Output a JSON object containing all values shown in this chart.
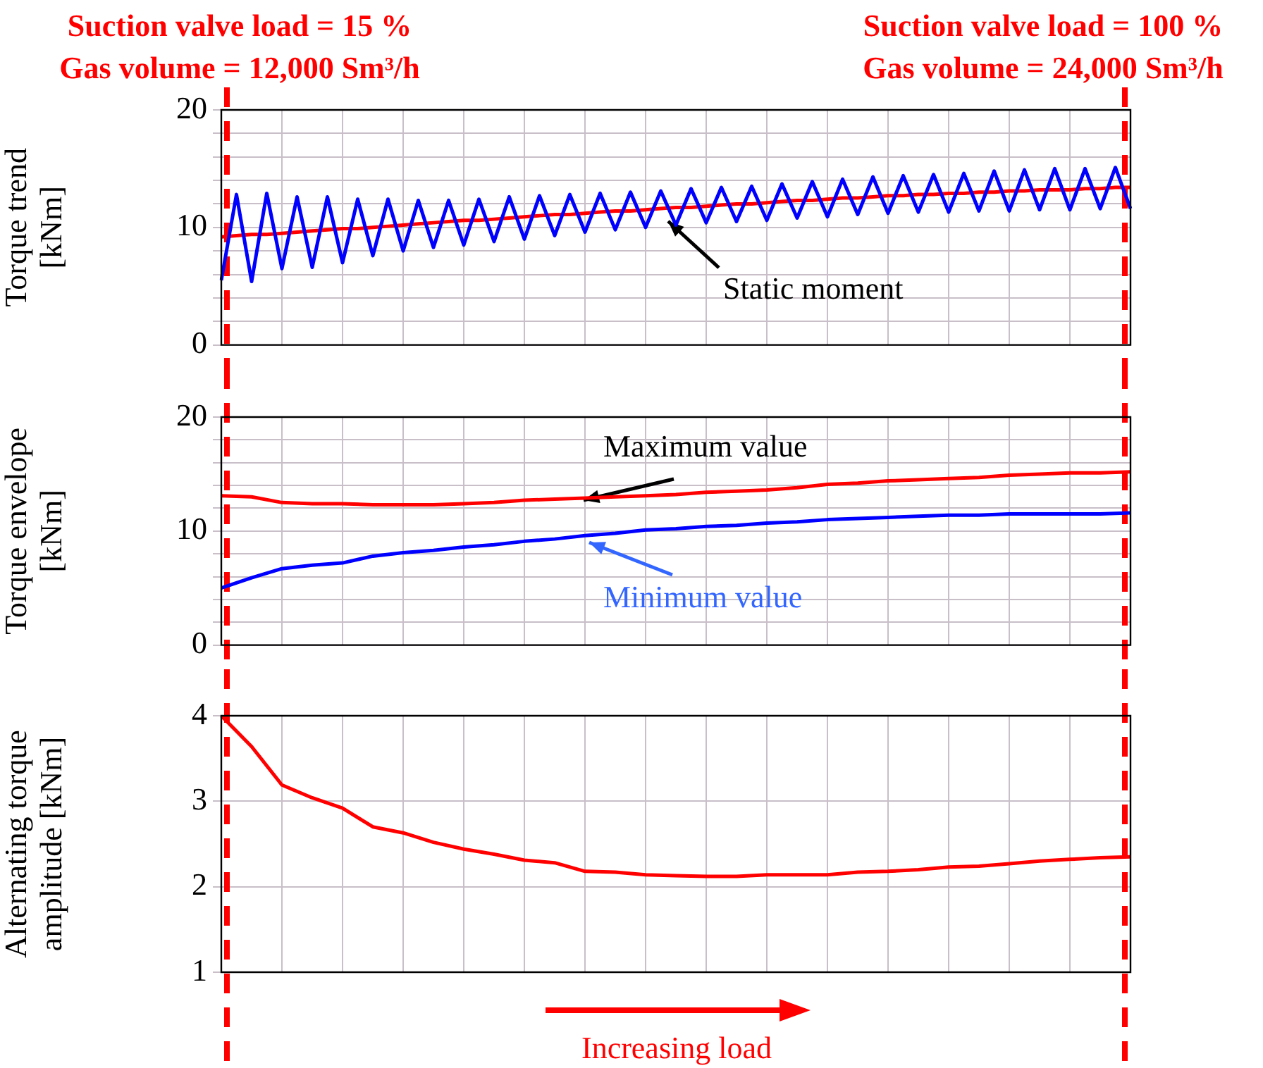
{
  "chart_data": [
    {
      "type": "line",
      "ylabel": "Torque trend\n[kNm]",
      "categories": [
        null,
        null,
        null,
        null,
        null,
        null,
        null,
        null,
        null,
        null,
        null,
        null,
        null,
        null,
        null,
        null,
        null,
        null,
        null,
        null,
        null,
        null,
        null,
        null,
        null,
        null,
        null,
        null,
        null,
        null,
        null,
        null,
        null,
        null,
        null,
        null,
        null,
        null,
        null,
        null,
        null,
        null,
        null,
        null,
        null,
        null,
        null,
        null,
        null,
        null,
        null,
        null,
        null,
        null,
        null,
        null,
        null,
        null,
        null,
        null,
        null
      ],
      "ylim": [
        0,
        20
      ],
      "yticks": [
        0,
        {
          "value": 2,
          "label": null
        },
        {
          "value": 4,
          "label": null
        },
        {
          "value": 6,
          "label": null
        },
        {
          "value": 8,
          "label": null
        },
        10,
        {
          "value": 12,
          "label": null
        },
        {
          "value": 14,
          "label": null
        },
        {
          "value": 16,
          "label": null
        },
        {
          "value": 18,
          "label": null
        },
        20
      ],
      "grid": true,
      "tick_labels": "y",
      "marker": "none",
      "series": [
        {
          "color": "#0000ff",
          "values": [
            5.5,
            12.8,
            5.4,
            12.9,
            6.5,
            12.6,
            6.6,
            12.6,
            7.0,
            12.4,
            7.6,
            12.4,
            8.0,
            12.3,
            8.3,
            12.3,
            8.5,
            12.4,
            8.8,
            12.6,
            9.0,
            12.7,
            9.3,
            12.8,
            9.6,
            12.9,
            9.8,
            13.0,
            10.0,
            13.1,
            10.2,
            13.3,
            10.4,
            13.4,
            10.5,
            13.5,
            10.6,
            13.7,
            10.8,
            13.9,
            10.9,
            14.1,
            11.1,
            14.3,
            11.2,
            14.4,
            11.3,
            14.5,
            11.3,
            14.6,
            11.4,
            14.8,
            11.4,
            14.9,
            11.5,
            15.0,
            11.5,
            15.0,
            11.6,
            15.1,
            11.6
          ]
        },
        {
          "color": "#ff0000",
          "values": [
            9.2,
            9.3,
            9.4,
            9.4,
            9.5,
            9.6,
            9.7,
            9.8,
            9.9,
            9.9,
            10.0,
            10.1,
            10.2,
            10.3,
            10.4,
            10.5,
            10.6,
            10.6,
            10.7,
            10.8,
            10.9,
            11.0,
            11.1,
            11.1,
            11.2,
            11.3,
            11.4,
            11.4,
            11.5,
            11.6,
            11.7,
            11.7,
            11.8,
            11.9,
            12.0,
            12.0,
            12.1,
            12.2,
            12.3,
            12.3,
            12.4,
            12.5,
            12.5,
            12.6,
            12.7,
            12.7,
            12.8,
            12.8,
            12.9,
            12.9,
            13.0,
            13.0,
            13.1,
            13.1,
            13.2,
            13.2,
            13.2,
            13.3,
            13.3,
            13.4,
            13.4
          ]
        }
      ],
      "annotations": [
        "Suction valve load = 15 %\nGas volume = 12,000 Sm³/h",
        "Suction valve load = 100 %\nGas volume = 24,000 Sm³/h",
        "Static moment"
      ]
    },
    {
      "type": "line",
      "ylabel": "Torque envelope\n[kNm]",
      "categories": [
        null,
        null,
        null,
        null,
        null,
        null,
        null,
        null,
        null,
        null,
        null,
        null,
        null,
        null,
        null,
        null,
        null,
        null,
        null,
        null,
        null,
        null,
        null,
        null,
        null,
        null,
        null,
        null,
        null,
        null,
        null
      ],
      "ylim": [
        0,
        20
      ],
      "yticks": [
        0,
        {
          "value": 2,
          "label": null
        },
        {
          "value": 4,
          "label": null
        },
        {
          "value": 6,
          "label": null
        },
        {
          "value": 8,
          "label": null
        },
        10,
        {
          "value": 12,
          "label": null
        },
        {
          "value": 14,
          "label": null
        },
        {
          "value": 16,
          "label": null
        },
        {
          "value": 18,
          "label": null
        },
        20
      ],
      "grid": true,
      "tick_labels": "y",
      "marker": "none",
      "series": [
        {
          "color": "#ff0000",
          "values": [
            13.1,
            13.0,
            12.5,
            12.4,
            12.4,
            12.3,
            12.3,
            12.3,
            12.4,
            12.5,
            12.7,
            12.8,
            12.9,
            13.0,
            13.1,
            13.2,
            13.4,
            13.5,
            13.6,
            13.8,
            14.1,
            14.2,
            14.4,
            14.5,
            14.6,
            14.7,
            14.9,
            15.0,
            15.1,
            15.1,
            15.2
          ]
        },
        {
          "color": "#0000ff",
          "values": [
            5.0,
            5.9,
            6.7,
            7.0,
            7.2,
            7.8,
            8.1,
            8.3,
            8.6,
            8.8,
            9.1,
            9.3,
            9.6,
            9.8,
            10.1,
            10.2,
            10.4,
            10.5,
            10.7,
            10.8,
            11.0,
            11.1,
            11.2,
            11.3,
            11.4,
            11.4,
            11.5,
            11.5,
            11.5,
            11.5,
            11.6
          ]
        }
      ],
      "annotations": [
        "Maximum value",
        "Minimum value"
      ]
    },
    {
      "type": "line",
      "ylabel": "Alternating torque\namplitude [kNm]",
      "categories": [
        null,
        null,
        null,
        null,
        null,
        null,
        null,
        null,
        null,
        null,
        null,
        null,
        null,
        null,
        null,
        null,
        null,
        null,
        null,
        null,
        null,
        null,
        null,
        null,
        null,
        null,
        null,
        null,
        null,
        null,
        null
      ],
      "ylim": [
        1,
        4
      ],
      "yticks": [
        1,
        2,
        3,
        4
      ],
      "grid": true,
      "tick_labels": "y",
      "marker": "none",
      "series": [
        {
          "color": "#ff0000",
          "values": [
            4.0,
            3.64,
            3.19,
            3.04,
            2.92,
            2.7,
            2.63,
            2.52,
            2.44,
            2.38,
            2.31,
            2.28,
            2.18,
            2.17,
            2.14,
            2.13,
            2.12,
            2.12,
            2.14,
            2.14,
            2.14,
            2.17,
            2.18,
            2.2,
            2.23,
            2.24,
            2.27,
            2.3,
            2.32,
            2.34,
            2.35
          ]
        }
      ],
      "annotations": [
        "Increasing load"
      ]
    }
  ]
}
